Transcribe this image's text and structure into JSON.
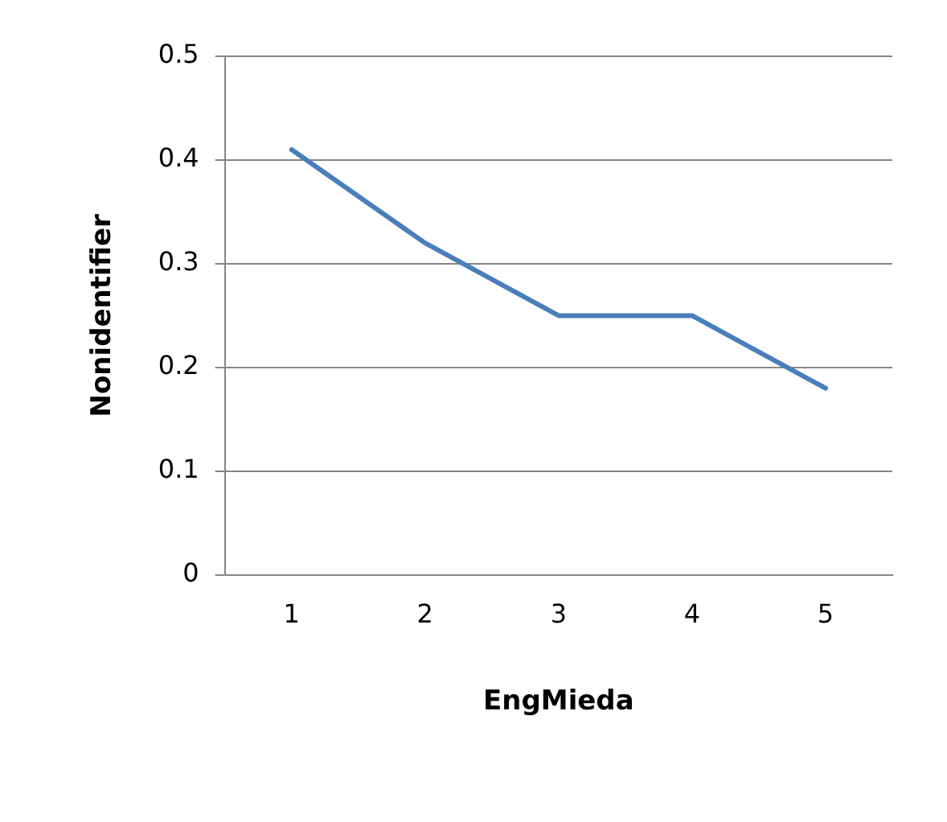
{
  "chart_data": {
    "type": "line",
    "xlabel": "EngMieda",
    "ylabel": "Nonidentifier",
    "categories": [
      "1",
      "2",
      "3",
      "4",
      "5"
    ],
    "series": [
      {
        "color": "#4a7ebb",
        "values": [
          0.41,
          0.32,
          0.25,
          0.25,
          0.18
        ]
      }
    ],
    "ylim": [
      0,
      0.5
    ],
    "yticks": [
      0,
      0.1,
      0.2,
      0.3,
      0.4,
      0.5
    ],
    "grid": "y",
    "legend": false,
    "marker": "none",
    "line_style": "solid"
  }
}
